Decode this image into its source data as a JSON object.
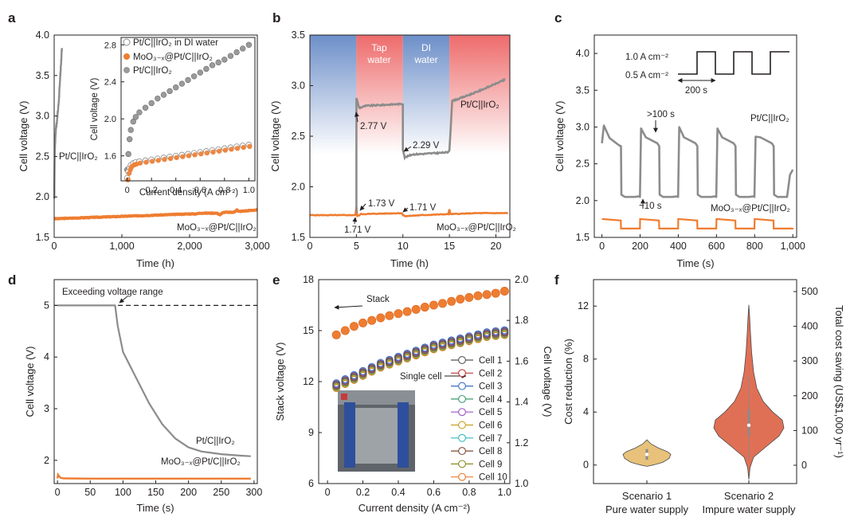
{
  "colors": {
    "orange": "#ee7d31",
    "gray": "#8c8c8c",
    "darkgray": "#777777",
    "blue": "#6d8fc9",
    "red": "#ee6b6b",
    "violin_gold": "#e8c27a",
    "violin_red": "#e07055"
  },
  "panels": {
    "a": {
      "letter": "a",
      "xlabel": "Time (h)",
      "ylabel": "Cell voltage (V)",
      "xticks": [
        "0",
        "1,000",
        "2,000",
        "3,000"
      ],
      "yticks": [
        "1.5",
        "2.0",
        "2.5",
        "3.0",
        "3.5",
        "4.0"
      ],
      "xlim": [
        0,
        3000
      ],
      "ylim": [
        1.5,
        4.0
      ],
      "label_ptc": "Pt/C||IrO₂",
      "label_moo": "MoO₃₋ₓ@Pt/C||IrO₂",
      "ptc_series": [
        [
          2,
          1.98
        ],
        [
          8,
          2.52
        ],
        [
          15,
          2.68
        ],
        [
          22,
          2.8
        ],
        [
          30,
          2.88
        ],
        [
          40,
          2.92
        ],
        [
          50,
          3.03
        ],
        [
          60,
          3.1
        ],
        [
          70,
          3.2
        ],
        [
          80,
          3.35
        ],
        [
          90,
          3.5
        ],
        [
          100,
          3.62
        ],
        [
          110,
          3.78
        ],
        [
          115,
          3.84
        ]
      ],
      "moo_series": [
        [
          0,
          1.73
        ],
        [
          500,
          1.745
        ],
        [
          1000,
          1.76
        ],
        [
          1500,
          1.775
        ],
        [
          2000,
          1.79
        ],
        [
          2100,
          1.79
        ],
        [
          2150,
          1.8
        ],
        [
          2400,
          1.8
        ],
        [
          2450,
          1.78
        ],
        [
          2500,
          1.81
        ],
        [
          2650,
          1.81
        ],
        [
          2700,
          1.84
        ],
        [
          2720,
          1.82
        ],
        [
          3000,
          1.84
        ]
      ],
      "inset": {
        "xlabel": "Current density (A cm⁻²)",
        "ylabel": "Cell voltage (V)",
        "xticks": [
          "0",
          "0.2",
          "0.4",
          "0.6",
          "0.8",
          "1.0"
        ],
        "yticks": [
          "1.6",
          "2.0",
          "2.4",
          "2.8"
        ],
        "xlim": [
          -0.05,
          1.05
        ],
        "ylim": [
          1.33,
          2.88
        ],
        "legend": [
          "Pt/C||IrO₂ in DI water",
          "MoO₃₋ₓ@Pt/C||IrO₂",
          "Pt/C||IrO₂"
        ],
        "ptc_x": [
          0,
          0.01,
          0.02,
          0.03,
          0.05,
          0.07,
          0.1,
          0.15,
          0.2,
          0.25,
          0.3,
          0.35,
          0.4,
          0.45,
          0.5,
          0.55,
          0.6,
          0.65,
          0.7,
          0.75,
          0.8,
          0.85,
          0.9,
          0.95,
          1.0
        ],
        "ptc_y": [
          1.45,
          1.62,
          1.78,
          1.88,
          1.97,
          2.02,
          2.07,
          2.12,
          2.17,
          2.22,
          2.26,
          2.3,
          2.34,
          2.38,
          2.42,
          2.46,
          2.5,
          2.54,
          2.58,
          2.61,
          2.64,
          2.68,
          2.72,
          2.76,
          2.8
        ],
        "di_x": [
          0,
          0.01,
          0.02,
          0.03,
          0.05,
          0.07,
          0.1,
          0.15,
          0.2,
          0.25,
          0.3,
          0.35,
          0.4,
          0.45,
          0.5,
          0.55,
          0.6,
          0.65,
          0.7,
          0.75,
          0.8,
          0.85,
          0.9,
          0.95,
          1.0
        ],
        "di_y": [
          1.36,
          1.43,
          1.47,
          1.5,
          1.52,
          1.53,
          1.54,
          1.55,
          1.56,
          1.57,
          1.58,
          1.59,
          1.6,
          1.61,
          1.62,
          1.63,
          1.64,
          1.65,
          1.66,
          1.67,
          1.68,
          1.69,
          1.7,
          1.71,
          1.72
        ],
        "moo_x": [
          0,
          0.01,
          0.02,
          0.03,
          0.05,
          0.07,
          0.1,
          0.15,
          0.2,
          0.25,
          0.3,
          0.35,
          0.4,
          0.45,
          0.5,
          0.55,
          0.6,
          0.65,
          0.7,
          0.75,
          0.8,
          0.85,
          0.9,
          0.95,
          1.0
        ],
        "moo_y": [
          1.35,
          1.42,
          1.46,
          1.49,
          1.51,
          1.52,
          1.53,
          1.54,
          1.55,
          1.56,
          1.57,
          1.58,
          1.59,
          1.6,
          1.61,
          1.62,
          1.63,
          1.64,
          1.65,
          1.66,
          1.67,
          1.68,
          1.69,
          1.7,
          1.71
        ]
      }
    },
    "b": {
      "letter": "b",
      "xlabel": "Time (h)",
      "ylabel": "Cell voltage (V)",
      "xticks": [
        "0",
        "5",
        "10",
        "15",
        "20"
      ],
      "yticks": [
        "1.5",
        "2.0",
        "2.5",
        "3.0",
        "3.5"
      ],
      "xlim": [
        0,
        21.5
      ],
      "ylim": [
        1.5,
        3.5
      ],
      "region_tap": "Tap water",
      "region_tap_line1": "Tap",
      "region_tap_line2": "water",
      "region_di_line1": "DI",
      "region_di_line2": "water",
      "label_ptc": "Pt/C||IrO₂",
      "label_moo": "MoO₃₋ₓ@Pt/C||IrO₂",
      "ann_277": "2.77 V",
      "ann_229": "2.29 V",
      "ann_173": "1.73 V",
      "ann_171a": "1.71 V",
      "ann_171b": "1.71 V",
      "ptc_series": [
        [
          5,
          1.74
        ],
        [
          5,
          2.88
        ],
        [
          5.3,
          2.78
        ],
        [
          6,
          2.8
        ],
        [
          8,
          2.81
        ],
        [
          10,
          2.82
        ],
        [
          10,
          2.37
        ],
        [
          10.2,
          2.29
        ],
        [
          11,
          2.32
        ],
        [
          13,
          2.33
        ],
        [
          14.8,
          2.34
        ],
        [
          15,
          2.36
        ],
        [
          15.3,
          2.85
        ],
        [
          16,
          2.87
        ],
        [
          18,
          2.94
        ],
        [
          20,
          3.02
        ],
        [
          21,
          3.06
        ]
      ],
      "moo_series": [
        [
          0,
          1.72
        ],
        [
          4.9,
          1.72
        ],
        [
          5,
          1.8
        ],
        [
          5.1,
          1.71
        ],
        [
          5.5,
          1.73
        ],
        [
          9.9,
          1.74
        ],
        [
          10,
          1.72
        ],
        [
          10.3,
          1.71
        ],
        [
          12,
          1.72
        ],
        [
          14.9,
          1.73
        ],
        [
          15,
          1.78
        ],
        [
          15.1,
          1.73
        ],
        [
          18,
          1.74
        ],
        [
          21.3,
          1.74
        ]
      ]
    },
    "c": {
      "letter": "c",
      "xlabel": "Time (s)",
      "ylabel": "Cell voltage (V)",
      "xticks": [
        "0",
        "200",
        "400",
        "600",
        "800",
        "1,000"
      ],
      "yticks": [
        "1.5",
        "2.0",
        "2.5",
        "3.0",
        "3.5",
        "4.0"
      ],
      "xlim": [
        -40,
        1020
      ],
      "ylim": [
        1.5,
        4.25
      ],
      "ann_high": "1.0 A cm⁻²",
      "ann_low": "0.5 A cm⁻²",
      "ann_200": "200 s",
      "ann_100": ">100 s",
      "ann_10": "~10 s",
      "label_ptc": "Pt/C||IrO₂",
      "label_moo": "MoO₃₋ₓ@Pt/C||IrO₂"
    },
    "d": {
      "letter": "d",
      "xlabel": "Time (s)",
      "ylabel": "Cell voltage (V)",
      "xticks": [
        "0",
        "50",
        "100",
        "150",
        "200",
        "250",
        "300"
      ],
      "yticks": [
        "2",
        "3",
        "4",
        "5"
      ],
      "xlim": [
        -5,
        305
      ],
      "ylim": [
        1.55,
        5.5
      ],
      "ann_range": "Exceeding voltage range",
      "limit": 5,
      "label_ptc": "Pt/C||IrO₂",
      "label_moo": "MoO₃₋ₓ@Pt/C||IrO₂",
      "ptc_series": [
        [
          0,
          5.0
        ],
        [
          88,
          5.0
        ],
        [
          92,
          4.6
        ],
        [
          100,
          4.1
        ],
        [
          120,
          3.6
        ],
        [
          140,
          3.1
        ],
        [
          160,
          2.7
        ],
        [
          180,
          2.42
        ],
        [
          200,
          2.25
        ],
        [
          220,
          2.17
        ],
        [
          250,
          2.12
        ],
        [
          280,
          2.09
        ],
        [
          295,
          2.08
        ]
      ],
      "moo_series": [
        [
          0,
          1.65
        ],
        [
          1,
          1.72
        ],
        [
          2,
          1.7
        ],
        [
          5,
          1.66
        ],
        [
          10,
          1.65
        ],
        [
          50,
          1.645
        ],
        [
          150,
          1.645
        ],
        [
          295,
          1.645
        ]
      ]
    },
    "e": {
      "letter": "e",
      "xlabel": "Current density (A cm⁻²)",
      "ylabel_left": "Stack voltage (V)",
      "ylabel_right": "Cell voltage (V)",
      "xticks": [
        "0",
        "0.2",
        "0.4",
        "0.6",
        "0.8",
        "1.0"
      ],
      "yticks_left": [
        "6",
        "9",
        "12",
        "15",
        "18"
      ],
      "yticks_right": [
        "1.0",
        "1.2",
        "1.4",
        "1.6",
        "1.8",
        "2.0"
      ],
      "xlim": [
        -0.05,
        1.03
      ],
      "ylim_left": [
        6,
        18
      ],
      "ylim_right": [
        1.0,
        2.0
      ],
      "ann_stack": "Stack",
      "ann_single": "Single cell",
      "stack_x": [
        0.05,
        0.1,
        0.15,
        0.2,
        0.25,
        0.3,
        0.35,
        0.4,
        0.45,
        0.5,
        0.55,
        0.6,
        0.65,
        0.7,
        0.75,
        0.8,
        0.85,
        0.9,
        0.95,
        1.0
      ],
      "stack_y": [
        14.75,
        15.0,
        15.25,
        15.45,
        15.6,
        15.75,
        15.88,
        16.0,
        16.12,
        16.25,
        16.38,
        16.5,
        16.6,
        16.72,
        16.85,
        16.95,
        17.05,
        17.12,
        17.2,
        17.32
      ],
      "cell_x": [
        0.05,
        0.1,
        0.15,
        0.2,
        0.25,
        0.3,
        0.35,
        0.4,
        0.45,
        0.5,
        0.55,
        0.6,
        0.65,
        0.7,
        0.75,
        0.8,
        0.85,
        0.9,
        0.95,
        1.0
      ],
      "cell_y": [
        1.48,
        1.5,
        1.52,
        1.54,
        1.56,
        1.58,
        1.595,
        1.61,
        1.625,
        1.64,
        1.655,
        1.67,
        1.68,
        1.69,
        1.7,
        1.71,
        1.72,
        1.73,
        1.735,
        1.74
      ],
      "cells": [
        {
          "name": "Cell 1",
          "color": "#555555",
          "offset": 0.005
        },
        {
          "name": "Cell 2",
          "color": "#c03a3a",
          "offset": 0.0
        },
        {
          "name": "Cell 3",
          "color": "#3a6fc0",
          "offset": 0.012
        },
        {
          "name": "Cell 4",
          "color": "#3a9a6a",
          "offset": -0.004
        },
        {
          "name": "Cell 5",
          "color": "#9a5ac8",
          "offset": 0.008
        },
        {
          "name": "Cell 6",
          "color": "#c8a020",
          "offset": -0.008
        },
        {
          "name": "Cell 7",
          "color": "#38b8c0",
          "offset": 0.003
        },
        {
          "name": "Cell 8",
          "color": "#7a4a30",
          "offset": -0.002
        },
        {
          "name": "Cell 9",
          "color": "#8a8a20",
          "offset": -0.01
        },
        {
          "name": "Cell 10",
          "color": "#ee7d31",
          "offset": -0.012
        }
      ]
    },
    "f": {
      "letter": "f",
      "ylabel_left": "Cost reduction (%)",
      "ylabel_right": "Total cost saving (US$1,000 yr⁻¹)",
      "yticks_left": [
        "0",
        "4",
        "8",
        "12"
      ],
      "yticks_right": [
        "0",
        "100",
        "200",
        "300",
        "400",
        "500"
      ],
      "ylim_left": [
        -1.4,
        14.0
      ],
      "scenario1_line1": "Scenario 1",
      "scenario1_line2": "Pure water supply",
      "scenario2_line1": "Scenario 2",
      "scenario2_line2": "Impure water supply",
      "scenario1_median": 0.8,
      "scenario2_median": 3.0
    }
  }
}
